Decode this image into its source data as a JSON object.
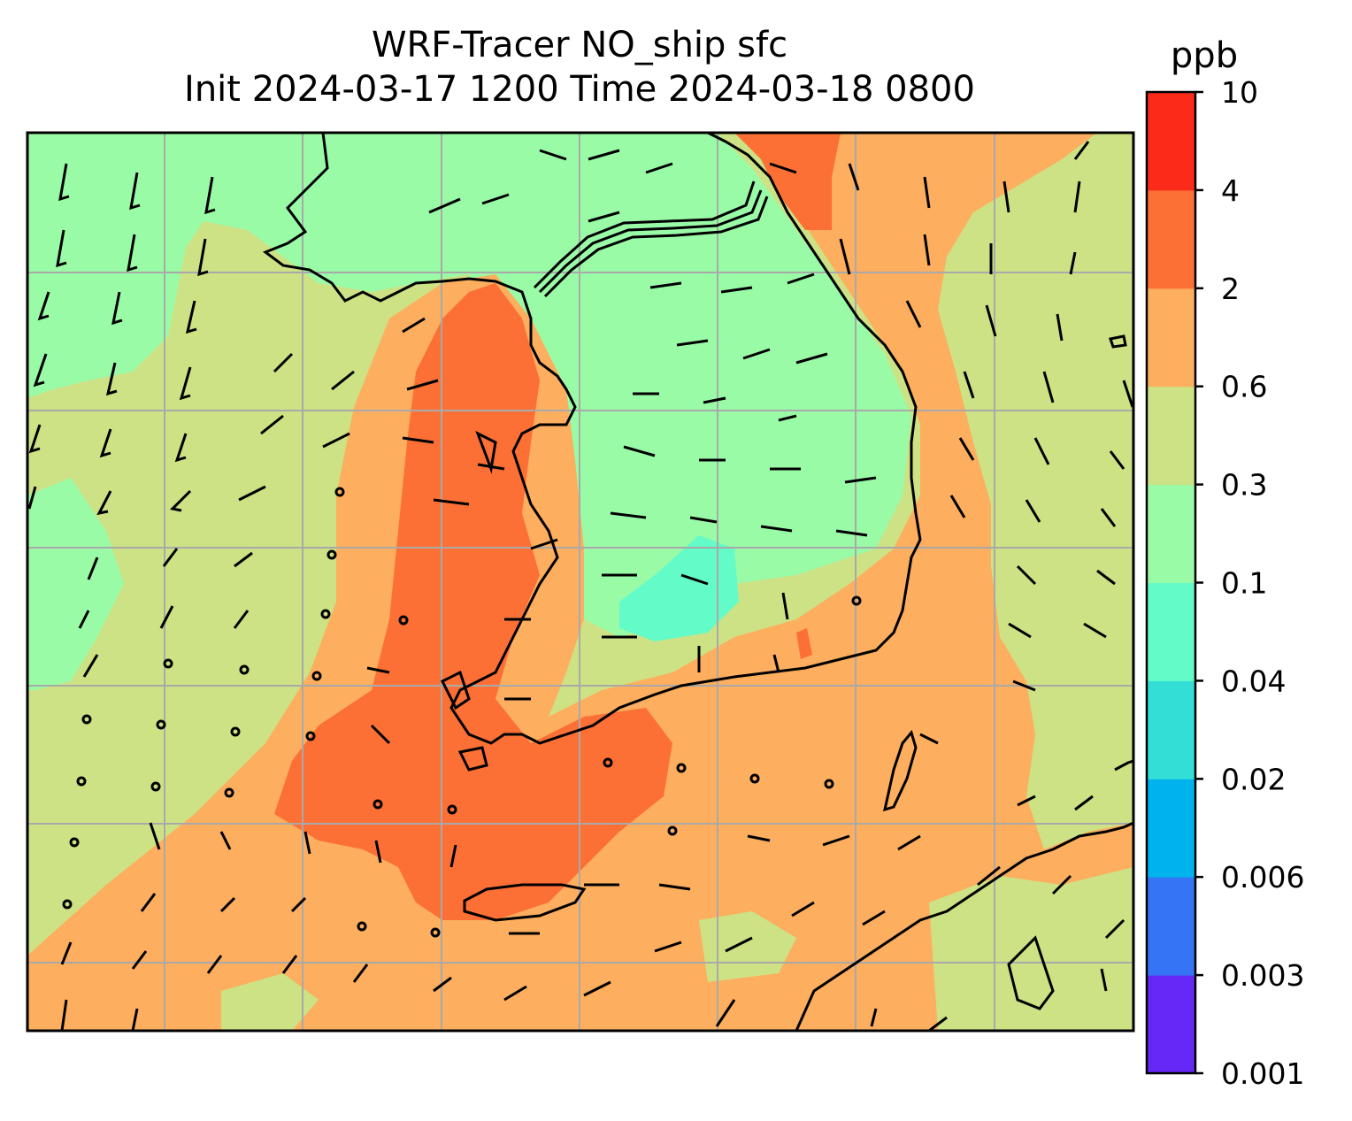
{
  "title": {
    "line1": "WRF-Tracer NO_ship sfc",
    "line2": "Init 2024-03-17 1200 Time 2024-03-18 0800"
  },
  "colorbar": {
    "unit": "ppb",
    "levels": [
      "0.001",
      "0.003",
      "0.006",
      "0.02",
      "0.04",
      "0.1",
      "0.3",
      "0.6",
      "2",
      "4",
      "10"
    ],
    "colors": [
      "#6528f7",
      "#3575f5",
      "#00b3ee",
      "#32ded6",
      "#63fbc7",
      "#9afba7",
      "#cde285",
      "#fdae5e",
      "#fc7036",
      "#fc2b19"
    ]
  },
  "map": {
    "field_colors": {
      "0.1-0.3": "#9afba7",
      "0.3-0.6": "#cde285",
      "0.6-2": "#fdae5e",
      "2-4": "#fc7036",
      "0.04-0.1": "#63fbc7"
    },
    "coastline_color": "#000000",
    "gridline_color": "#a9a9a9",
    "wind_barb_color": "#000000"
  }
}
